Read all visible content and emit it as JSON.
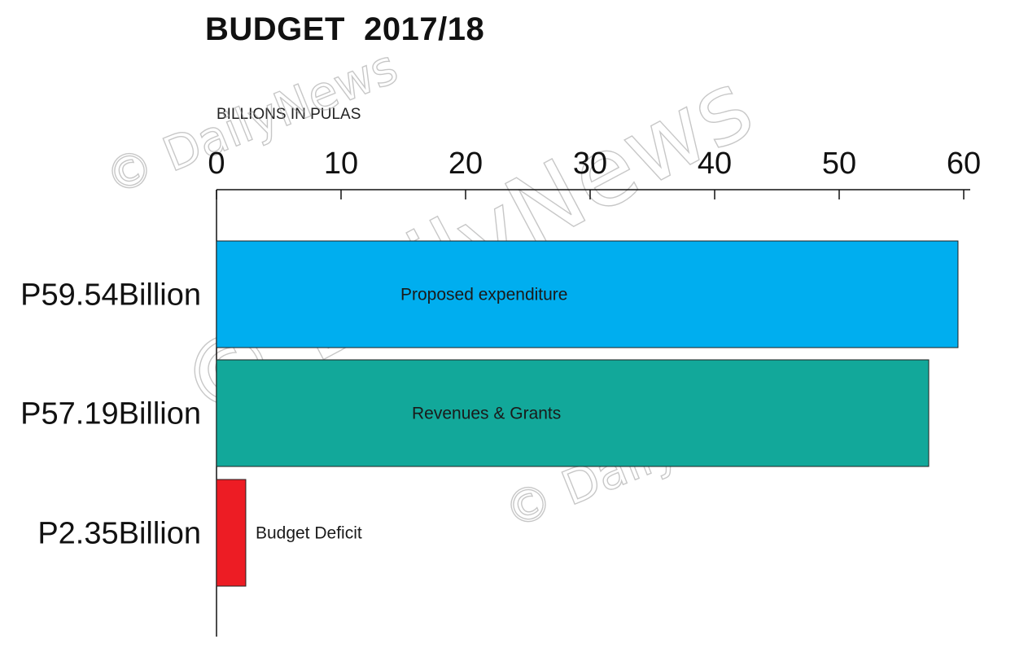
{
  "chart_data": {
    "type": "bar",
    "orientation": "horizontal",
    "title": "BUDGET  2017/18",
    "xlabel": "BILLIONS IN PULAS",
    "xlim": [
      0,
      60
    ],
    "x_ticks": [
      "0",
      "10",
      "20",
      "30",
      "40",
      "50",
      "60"
    ],
    "grid": false,
    "categories": [
      "P59.54Billion",
      "P57.19Billion",
      "P2.35Billion"
    ],
    "bar_labels": [
      "Proposed expenditure",
      "Revenues & Grants",
      "Budget Deficit"
    ],
    "values": [
      59.54,
      57.19,
      2.35
    ],
    "colors": [
      "#00aeef",
      "#12a89a",
      "#ed1c24"
    ]
  },
  "watermark": {
    "text": "© DailyNews"
  }
}
